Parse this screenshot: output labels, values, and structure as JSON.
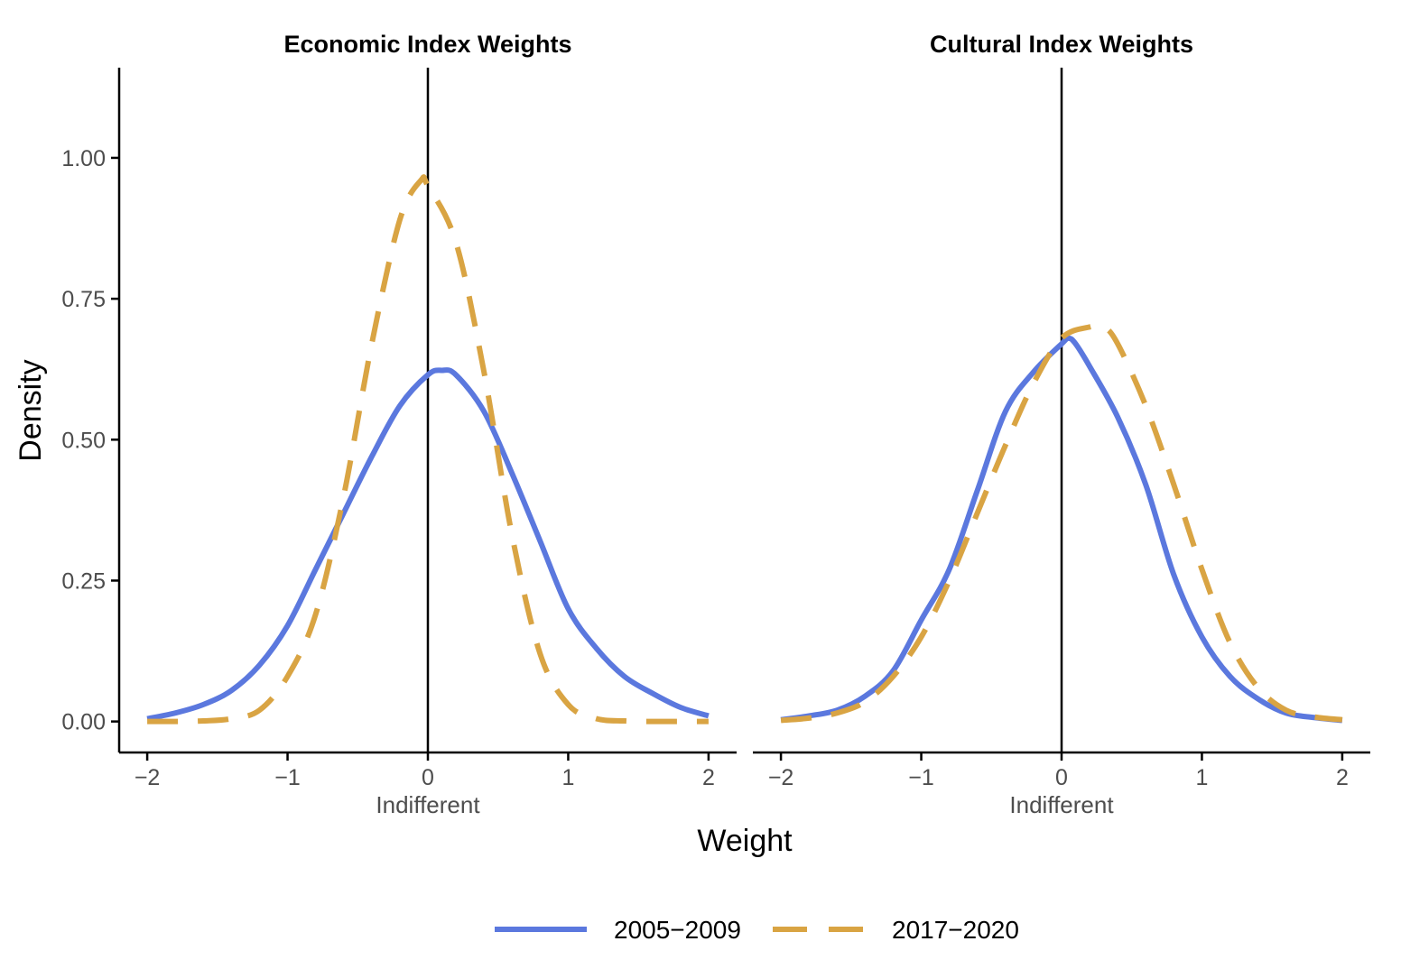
{
  "figure": {
    "ylabel": "Density",
    "xlabel": "Weight"
  },
  "colors": {
    "series_2005_2009": "#5B78DE",
    "series_2017_2020": "#D9A443",
    "axis": "#000000",
    "tick_text": "#4d4d4d"
  },
  "legend": {
    "placement": "bottom",
    "items": [
      {
        "label": "2005−2009",
        "color": "#5B78DE",
        "style": "solid"
      },
      {
        "label": "2017−2020",
        "color": "#D9A443",
        "style": "dashed"
      }
    ]
  },
  "chart_data": [
    {
      "type": "line",
      "title": "Economic Index Weights",
      "xlabel": "Weight",
      "ylabel": "Density",
      "xlim": [
        -2.2,
        2.2
      ],
      "ylim": [
        -0.055,
        1.16
      ],
      "x_ticks": [
        -2,
        -1,
        0,
        1,
        2
      ],
      "x_tick_labels": [
        "−2",
        "−1",
        "0",
        "1",
        "2"
      ],
      "y_ticks": [
        0,
        0.25,
        0.5,
        0.75,
        1
      ],
      "y_tick_labels": [
        "0.00",
        "0.25",
        "0.50",
        "0.75",
        "1.00"
      ],
      "grid": false,
      "vline": {
        "x": 0,
        "label": "Indifferent"
      },
      "series": [
        {
          "name": "2005−2009",
          "style": "solid",
          "x": [
            -2.0,
            -1.8,
            -1.6,
            -1.4,
            -1.2,
            -1.0,
            -0.8,
            -0.6,
            -0.4,
            -0.2,
            0.0,
            0.1,
            0.2,
            0.4,
            0.6,
            0.8,
            1.0,
            1.2,
            1.4,
            1.6,
            1.8,
            2.0
          ],
          "y": [
            0.005,
            0.015,
            0.03,
            0.055,
            0.1,
            0.17,
            0.27,
            0.37,
            0.47,
            0.56,
            0.615,
            0.623,
            0.615,
            0.55,
            0.44,
            0.32,
            0.2,
            0.13,
            0.08,
            0.05,
            0.025,
            0.01
          ]
        },
        {
          "name": "2017−2020",
          "style": "dashed",
          "x": [
            -2.0,
            -1.8,
            -1.6,
            -1.4,
            -1.2,
            -1.0,
            -0.8,
            -0.6,
            -0.4,
            -0.2,
            -0.05,
            0.0,
            0.2,
            0.4,
            0.6,
            0.8,
            1.0,
            1.2,
            1.4,
            1.6,
            1.8,
            2.0
          ],
          "y": [
            0.0,
            0.0,
            0.001,
            0.005,
            0.02,
            0.08,
            0.19,
            0.4,
            0.67,
            0.89,
            0.96,
            0.95,
            0.85,
            0.62,
            0.33,
            0.12,
            0.03,
            0.005,
            0.001,
            0.0,
            0.0,
            0.0
          ]
        }
      ]
    },
    {
      "type": "line",
      "title": "Cultural Index Weights",
      "xlabel": "Weight",
      "ylabel": "Density",
      "xlim": [
        -2.2,
        2.2
      ],
      "ylim": [
        -0.055,
        1.16
      ],
      "x_ticks": [
        -2,
        -1,
        0,
        1,
        2
      ],
      "x_tick_labels": [
        "−2",
        "−1",
        "0",
        "1",
        "2"
      ],
      "y_ticks": [
        0,
        0.25,
        0.5,
        0.75,
        1
      ],
      "y_tick_labels": [
        "0.00",
        "0.25",
        "0.50",
        "0.75",
        "1.00"
      ],
      "grid": false,
      "vline": {
        "x": 0,
        "label": "Indifferent"
      },
      "series": [
        {
          "name": "2005−2009",
          "style": "solid",
          "x": [
            -2.0,
            -1.8,
            -1.6,
            -1.4,
            -1.2,
            -1.0,
            -0.8,
            -0.6,
            -0.4,
            -0.2,
            0.0,
            0.05,
            0.1,
            0.2,
            0.4,
            0.6,
            0.8,
            1.0,
            1.2,
            1.4,
            1.6,
            1.8,
            2.0
          ],
          "y": [
            0.003,
            0.01,
            0.02,
            0.045,
            0.09,
            0.18,
            0.27,
            0.41,
            0.55,
            0.62,
            0.67,
            0.68,
            0.67,
            0.63,
            0.54,
            0.42,
            0.26,
            0.15,
            0.08,
            0.04,
            0.015,
            0.007,
            0.002
          ]
        },
        {
          "name": "2017−2020",
          "style": "dashed",
          "x": [
            -2.0,
            -1.8,
            -1.6,
            -1.4,
            -1.2,
            -1.0,
            -0.8,
            -0.6,
            -0.4,
            -0.2,
            0.0,
            0.2,
            0.3,
            0.4,
            0.6,
            0.8,
            1.0,
            1.2,
            1.4,
            1.6,
            1.8,
            2.0
          ],
          "y": [
            0.002,
            0.006,
            0.015,
            0.035,
            0.08,
            0.15,
            0.25,
            0.37,
            0.49,
            0.6,
            0.68,
            0.7,
            0.7,
            0.67,
            0.56,
            0.42,
            0.27,
            0.14,
            0.06,
            0.02,
            0.008,
            0.003
          ]
        }
      ]
    }
  ]
}
